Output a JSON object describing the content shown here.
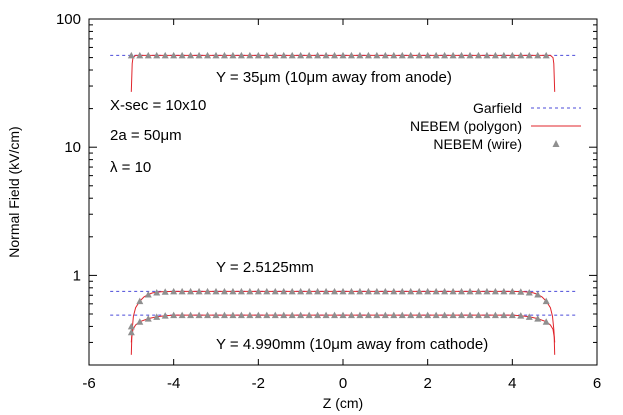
{
  "chart_data": {
    "type": "line",
    "title": "",
    "xlabel": "Z (cm)",
    "ylabel": "Normal Field (kV/cm)",
    "xlim": [
      -6,
      6
    ],
    "ylim": [
      0.2,
      100
    ],
    "yscale": "log",
    "grid": false,
    "legend_position": "right",
    "x_ticks": [
      -6,
      -4,
      -2,
      0,
      2,
      4,
      6
    ],
    "x_tick_labels": [
      "-6",
      "-4",
      "-2",
      "0",
      "2",
      "4",
      "6"
    ],
    "y_ticks": [
      1,
      10,
      100
    ],
    "y_tick_labels": [
      "1",
      "10",
      "100"
    ],
    "colors": {
      "garfield": "#4b4bd9",
      "polygon": "#e0242b",
      "wire": "#8f8f8f"
    },
    "series": [
      {
        "name": "Garfield",
        "style": "dashed",
        "curves": [
          {
            "x": [
              -5.5,
              5.5
            ],
            "y": [
              52,
              52
            ]
          },
          {
            "x": [
              -5.5,
              5.5
            ],
            "y": [
              0.75,
              0.75
            ]
          },
          {
            "x": [
              -5.5,
              5.5
            ],
            "y": [
              0.49,
              0.49
            ]
          }
        ]
      },
      {
        "name": "NEBEM (polygon)",
        "style": "solid",
        "curves": [
          {
            "x": [
              -5.0,
              -4.98,
              -4.96,
              -4.9,
              4.9,
              4.96,
              4.98,
              5.0
            ],
            "y": [
              27,
              45,
              50,
              52,
              52,
              50,
              45,
              27
            ]
          },
          {
            "x": [
              -5.0,
              -4.98,
              -4.95,
              -4.9,
              -4.8,
              -4.7,
              -4.6,
              -4.5,
              -4.3,
              -4.0,
              4.0,
              4.3,
              4.5,
              4.6,
              4.7,
              4.8,
              4.9,
              4.95,
              4.98,
              5.0
            ],
            "y": [
              0.3,
              0.38,
              0.48,
              0.56,
              0.63,
              0.68,
              0.71,
              0.73,
              0.745,
              0.75,
              0.75,
              0.745,
              0.73,
              0.71,
              0.68,
              0.63,
              0.56,
              0.48,
              0.38,
              0.3
            ]
          },
          {
            "x": [
              -5.0,
              -4.99,
              -4.96,
              -4.9,
              -4.8,
              -4.6,
              -4.4,
              -4.2,
              -4.0,
              4.0,
              4.2,
              4.4,
              4.6,
              4.8,
              4.9,
              4.96,
              4.99,
              5.0
            ],
            "y": [
              0.24,
              0.33,
              0.38,
              0.41,
              0.435,
              0.46,
              0.475,
              0.485,
              0.49,
              0.49,
              0.485,
              0.475,
              0.46,
              0.435,
              0.41,
              0.38,
              0.33,
              0.24
            ]
          }
        ]
      },
      {
        "name": "NEBEM (wire)",
        "style": "markers",
        "curves": [
          {
            "x": [
              -5.0,
              -4.8,
              -4.6,
              -4.4,
              -4.2,
              -4.0,
              -3.8,
              -3.6,
              -3.4,
              -3.2,
              -3.0,
              -2.8,
              -2.6,
              -2.4,
              -2.2,
              -2.0,
              -1.8,
              -1.6,
              -1.4,
              -1.2,
              -1.0,
              -0.8,
              -0.6,
              -0.4,
              -0.2,
              0.0,
              0.2,
              0.4,
              0.6,
              0.8,
              1.0,
              1.2,
              1.4,
              1.6,
              1.8,
              2.0,
              2.2,
              2.4,
              2.6,
              2.8,
              3.0,
              3.2,
              3.4,
              3.6,
              3.8,
              4.0,
              4.2,
              4.4,
              4.6,
              4.8
            ],
            "y": [
              52,
              52,
              52,
              52,
              52,
              52,
              52,
              52,
              52,
              52,
              52,
              52,
              52,
              52,
              52,
              52,
              52,
              52,
              52,
              52,
              52,
              52,
              52,
              52,
              52,
              52,
              52,
              52,
              52,
              52,
              52,
              52,
              52,
              52,
              52,
              52,
              52,
              52,
              52,
              52,
              52,
              52,
              52,
              52,
              52,
              52,
              52,
              52,
              52,
              52
            ]
          },
          {
            "x": [
              -5.0,
              -4.8,
              -4.6,
              -4.4,
              -4.2,
              -4.0,
              -3.8,
              -3.6,
              -3.4,
              -3.2,
              -3.0,
              -2.8,
              -2.6,
              -2.4,
              -2.2,
              -2.0,
              -1.8,
              -1.6,
              -1.4,
              -1.2,
              -1.0,
              -0.8,
              -0.6,
              -0.4,
              -0.2,
              0.0,
              0.2,
              0.4,
              0.6,
              0.8,
              1.0,
              1.2,
              1.4,
              1.6,
              1.8,
              2.0,
              2.2,
              2.4,
              2.6,
              2.8,
              3.0,
              3.2,
              3.4,
              3.6,
              3.8,
              4.0,
              4.2,
              4.4,
              4.6,
              4.8
            ],
            "y": [
              0.4,
              0.63,
              0.71,
              0.735,
              0.745,
              0.75,
              0.75,
              0.75,
              0.75,
              0.75,
              0.75,
              0.75,
              0.75,
              0.75,
              0.75,
              0.75,
              0.75,
              0.75,
              0.75,
              0.75,
              0.75,
              0.75,
              0.75,
              0.75,
              0.75,
              0.75,
              0.75,
              0.75,
              0.75,
              0.75,
              0.75,
              0.75,
              0.75,
              0.75,
              0.75,
              0.75,
              0.75,
              0.75,
              0.75,
              0.75,
              0.75,
              0.75,
              0.75,
              0.75,
              0.75,
              0.75,
              0.745,
              0.735,
              0.71,
              0.63
            ]
          },
          {
            "x": [
              -5.0,
              -4.8,
              -4.6,
              -4.4,
              -4.2,
              -4.0,
              -3.8,
              -3.6,
              -3.4,
              -3.2,
              -3.0,
              -2.8,
              -2.6,
              -2.4,
              -2.2,
              -2.0,
              -1.8,
              -1.6,
              -1.4,
              -1.2,
              -1.0,
              -0.8,
              -0.6,
              -0.4,
              -0.2,
              0.0,
              0.2,
              0.4,
              0.6,
              0.8,
              1.0,
              1.2,
              1.4,
              1.6,
              1.8,
              2.0,
              2.2,
              2.4,
              2.6,
              2.8,
              3.0,
              3.2,
              3.4,
              3.6,
              3.8,
              4.0,
              4.2,
              4.4,
              4.6,
              4.8
            ],
            "y": [
              0.36,
              0.435,
              0.46,
              0.475,
              0.485,
              0.49,
              0.49,
              0.49,
              0.49,
              0.49,
              0.49,
              0.49,
              0.49,
              0.49,
              0.49,
              0.49,
              0.49,
              0.49,
              0.49,
              0.49,
              0.49,
              0.49,
              0.49,
              0.49,
              0.49,
              0.49,
              0.49,
              0.49,
              0.49,
              0.49,
              0.49,
              0.49,
              0.49,
              0.49,
              0.49,
              0.49,
              0.49,
              0.49,
              0.49,
              0.49,
              0.49,
              0.49,
              0.49,
              0.49,
              0.49,
              0.49,
              0.485,
              0.475,
              0.46,
              0.435
            ]
          }
        ]
      }
    ],
    "annotations": [
      {
        "id": "y35",
        "text": "Y = 35μm (10μm away from anode)"
      },
      {
        "id": "xsec",
        "text": "X-sec = 10x10"
      },
      {
        "id": "diam",
        "text": "2a = 50μm"
      },
      {
        "id": "lambda",
        "text": "λ = 10"
      },
      {
        "id": "y25125",
        "text": "Y = 2.5125mm"
      },
      {
        "id": "y4990",
        "text": "Y = 4.990mm (10μm away from cathode)"
      }
    ]
  }
}
